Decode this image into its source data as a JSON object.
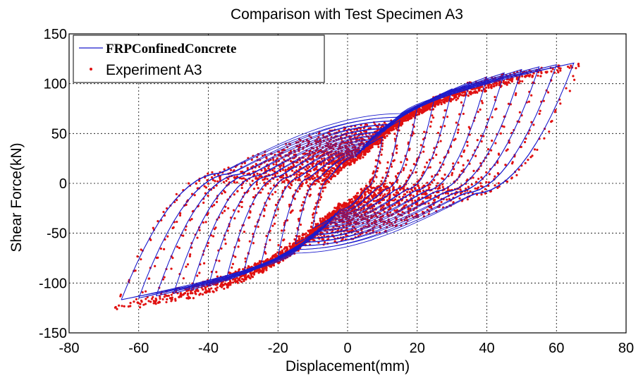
{
  "chart_data": {
    "type": "line",
    "title": "Comparison with Test Specimen A3",
    "xlabel": "Displacement(mm)",
    "ylabel": "Shear Force(kN)",
    "xlim": [
      -80,
      80
    ],
    "ylim": [
      -150,
      150
    ],
    "xticks": [
      "-80",
      "-60",
      "-40",
      "-20",
      "0",
      "20",
      "40",
      "60",
      "80"
    ],
    "yticks": [
      "150",
      "100",
      "50",
      "0",
      "-50",
      "-100",
      "-150"
    ],
    "grid": true,
    "legend_position": "top-left",
    "series": [
      {
        "name": "FRPConfinedConcrete",
        "style": "line",
        "color": "#1a1acc",
        "amplitudes": [
          10,
          15,
          20,
          25,
          30,
          35,
          40,
          45,
          50,
          55,
          60,
          65
        ],
        "peak_force_pos": 121,
        "peak_force_neg": -117,
        "pinch_force": 50
      },
      {
        "name": "Experiment A3",
        "style": "dots",
        "color": "#e01010",
        "amplitudes": [
          10,
          15,
          20,
          25,
          30,
          35,
          40,
          45,
          50,
          55,
          60,
          66
        ],
        "peak_force_pos": 118,
        "peak_force_neg": -124,
        "pinch_force": 45
      }
    ]
  }
}
